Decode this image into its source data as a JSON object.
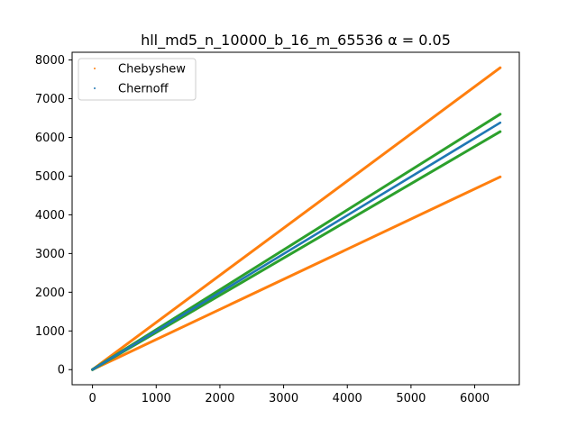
{
  "chart_data": {
    "type": "line",
    "title": "hll_md5_n_10000_b_16_m_65536 α = 0.05",
    "xlabel": "",
    "ylabel": "",
    "xlim": [
      -320,
      6700
    ],
    "ylim": [
      -390,
      8200
    ],
    "xticks": [
      0,
      1000,
      2000,
      3000,
      4000,
      5000,
      6000
    ],
    "xtick_labels": [
      "0",
      "1000",
      "2000",
      "3000",
      "4000",
      "5000",
      "6000"
    ],
    "yticks": [
      0,
      1000,
      2000,
      3000,
      4000,
      5000,
      6000,
      7000,
      8000
    ],
    "ytick_labels": [
      "0",
      "1000",
      "2000",
      "3000",
      "4000",
      "5000",
      "6000",
      "7000",
      "8000"
    ],
    "grid": false,
    "legend": {
      "position": "top-left",
      "entries": [
        "Chebyshew",
        "Chernoff"
      ]
    },
    "series": [
      {
        "name": "Chebyshew",
        "color": "#ff7f0e",
        "marker": "point",
        "x": [
          0,
          6400
        ],
        "y": [
          0,
          7800
        ]
      },
      {
        "name": "Chebyshew",
        "color": "#ff7f0e",
        "marker": "point",
        "x": [
          0,
          6400
        ],
        "y": [
          0,
          4980
        ]
      },
      {
        "name": "Chernoff",
        "color": "#2ca02c",
        "marker": "point",
        "x": [
          0,
          6400
        ],
        "y": [
          0,
          6600
        ]
      },
      {
        "name": "Chernoff",
        "color": "#2ca02c",
        "marker": "point",
        "x": [
          0,
          6400
        ],
        "y": [
          0,
          6150
        ]
      },
      {
        "color": "#1f77b4",
        "marker": "point",
        "x": [
          0,
          6400
        ],
        "y": [
          0,
          6380
        ]
      }
    ]
  }
}
